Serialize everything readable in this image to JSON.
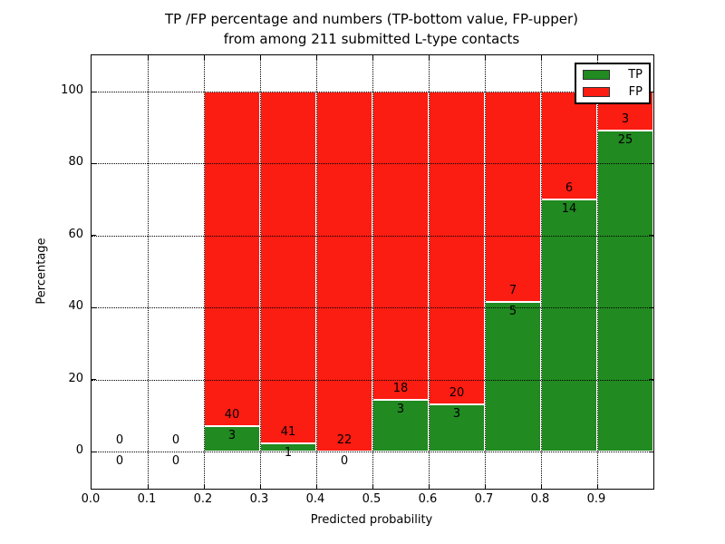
{
  "chart_data": {
    "type": "bar",
    "stacked": true,
    "normalized": "each bar scaled to 100%",
    "title_lines": [
      "TP /FP percentage and numbers (TP-bottom value, FP-upper)",
      "from among 211 submitted L-type contacts"
    ],
    "title": "TP /FP percentage and numbers (TP-bottom value, FP-upper)\nfrom among 211 submitted L-type contacts",
    "total_contacts": 211,
    "xlabel": "Predicted probability",
    "ylabel": "Percentage",
    "x_tick_labels": [
      "0.0",
      "0.1",
      "0.2",
      "0.3",
      "0.4",
      "0.5",
      "0.6",
      "0.7",
      "0.8",
      "0.9"
    ],
    "y_tick_values": [
      0,
      20,
      40,
      60,
      80,
      100
    ],
    "xlim": [
      0.0,
      1.0
    ],
    "ylim": [
      -10.3,
      110.1
    ],
    "grid": "dotted black, drawn over bars",
    "legend": {
      "position": "upper right",
      "entries": [
        {
          "label": "TP",
          "color": "#218a21"
        },
        {
          "label": "FP",
          "color": "#fb1c12"
        }
      ]
    },
    "colors": {
      "tp": "#218a21",
      "fp": "#fb1c12",
      "bar_edge": "#ffffff"
    },
    "bins": [
      {
        "range": [
          0.0,
          0.1
        ],
        "tp": 0,
        "fp": 0,
        "tp_pct": null
      },
      {
        "range": [
          0.1,
          0.2
        ],
        "tp": 0,
        "fp": 0,
        "tp_pct": null
      },
      {
        "range": [
          0.2,
          0.3
        ],
        "tp": 3,
        "fp": 40,
        "tp_pct": 6.98
      },
      {
        "range": [
          0.3,
          0.4
        ],
        "tp": 1,
        "fp": 41,
        "tp_pct": 2.38
      },
      {
        "range": [
          0.4,
          0.5
        ],
        "tp": 0,
        "fp": 22,
        "tp_pct": 0.0
      },
      {
        "range": [
          0.5,
          0.6
        ],
        "tp": 3,
        "fp": 18,
        "tp_pct": 14.29
      },
      {
        "range": [
          0.6,
          0.7
        ],
        "tp": 3,
        "fp": 20,
        "tp_pct": 13.04
      },
      {
        "range": [
          0.7,
          0.8
        ],
        "tp": 5,
        "fp": 7,
        "tp_pct": 41.67
      },
      {
        "range": [
          0.8,
          0.9
        ],
        "tp": 14,
        "fp": 6,
        "tp_pct": 70.0
      },
      {
        "range": [
          0.9,
          1.0
        ],
        "tp": 25,
        "fp": 3,
        "tp_pct": 89.29
      }
    ]
  }
}
